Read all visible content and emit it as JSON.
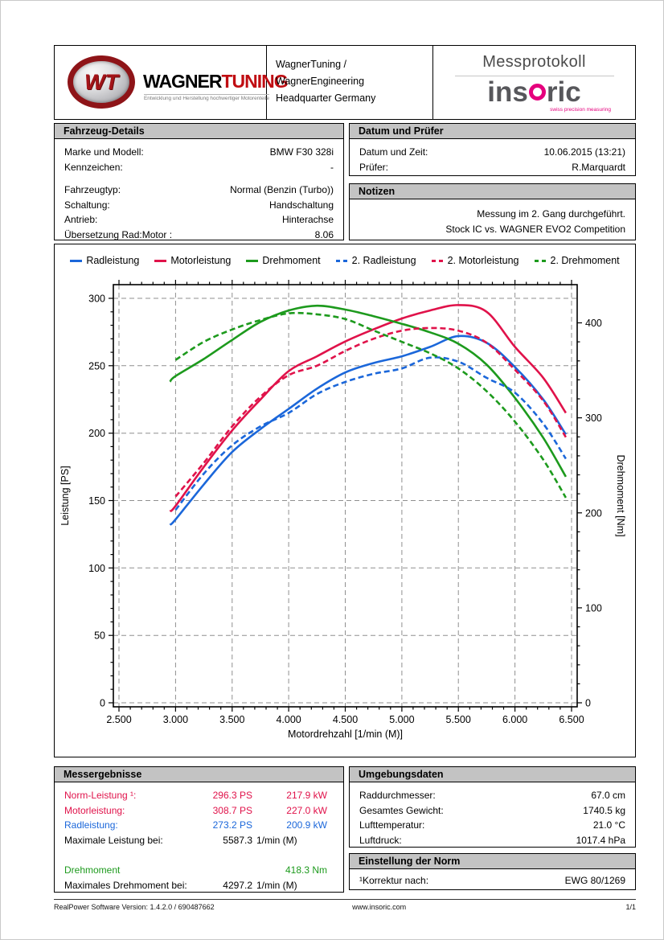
{
  "header": {
    "logo": {
      "monogram": "WT",
      "brand_black": "WAGNER",
      "brand_red": "TUNING",
      "tagline": "Entwicklung und Herstellung hochwertiger Motorenteile"
    },
    "center_line1": "WagnerTuning / WagnerEngineering",
    "center_line2": "Headquarter Germany",
    "protocol_title": "Messprotokoll",
    "insoric": {
      "name_pre": "ins",
      "name_post": "ric",
      "tagline": "swiss precision measuring"
    }
  },
  "vehicle_details": {
    "title": "Fahrzeug-Details",
    "rows": [
      {
        "label": "Marke und Modell:",
        "value": "BMW F30 328i"
      },
      {
        "label": "Kennzeichen:",
        "value": "-"
      },
      {
        "spacer": true
      },
      {
        "label": "Fahrzeugtyp:",
        "value": "Normal (Benzin (Turbo))"
      },
      {
        "label": "Schaltung:",
        "value": "Handschaltung"
      },
      {
        "label": "Antrieb:",
        "value": "Hinterachse"
      },
      {
        "label": "Übersetzung Rad:Motor :",
        "value": "8.06"
      }
    ]
  },
  "datum_pruefer": {
    "title": "Datum und Prüfer",
    "rows": [
      {
        "label": "Datum und Zeit:",
        "value": "10.06.2015 (13:21)"
      },
      {
        "label": "Prüfer:",
        "value": "R.Marquardt"
      }
    ]
  },
  "notizen": {
    "title": "Notizen",
    "lines": [
      "Messung im 2. Gang durchgeführt.",
      "Stock IC vs. WAGNER EVO2 Competition"
    ]
  },
  "chart_data": {
    "type": "line",
    "x_label": "Motordrehzahl [1/min (M)]",
    "y_left_label": "Leistung [PS]",
    "y_right_label": "Drehmoment [Nm]",
    "x_range": [
      2450,
      6550
    ],
    "x_ticks": [
      2500,
      3000,
      3500,
      4000,
      4500,
      5000,
      5500,
      6000,
      6500
    ],
    "x_tick_labels": [
      "2.500",
      "3.000",
      "3.500",
      "4.000",
      "4.500",
      "5.000",
      "5.500",
      "6.000",
      "6.500"
    ],
    "y_left_range": [
      0,
      300
    ],
    "y_left_ticks": [
      0,
      50,
      100,
      150,
      200,
      250,
      300
    ],
    "y_right_range": [
      0,
      400
    ],
    "y_right_ticks": [
      0,
      100,
      200,
      300,
      400
    ],
    "grid": true,
    "legend_position": "top",
    "rpm": [
      2950,
      3000,
      3250,
      3500,
      3750,
      4000,
      4250,
      4500,
      4750,
      5000,
      5250,
      5500,
      5750,
      6000,
      6250,
      6450
    ],
    "series": [
      {
        "name": "Radleistung",
        "axis": "left",
        "dash": false,
        "color": "#1b67da",
        "values": [
          132,
          136,
          162,
          186,
          203,
          218,
          233,
          245,
          252,
          257,
          264,
          272,
          267,
          249,
          225,
          199
        ]
      },
      {
        "name": "Motorleistung",
        "axis": "left",
        "dash": false,
        "color": "#e0124a",
        "values": [
          142,
          146,
          175,
          202,
          225,
          246,
          257,
          268,
          277,
          285,
          291,
          295,
          290,
          264,
          241,
          215
        ]
      },
      {
        "name": "Drehmoment",
        "axis": "right",
        "dash": false,
        "color": "#1d9a1d",
        "values": [
          338,
          344,
          362,
          382,
          401,
          413,
          418,
          414,
          407,
          399,
          390,
          378,
          356,
          321,
          279,
          238
        ]
      },
      {
        "name": "2. Radleistung",
        "axis": "left",
        "dash": true,
        "color": "#1b67da",
        "values": [
          null,
          143,
          170,
          191,
          205,
          215,
          229,
          238,
          244,
          248,
          256,
          253,
          241,
          230,
          207,
          181
        ]
      },
      {
        "name": "2. Motorleistung",
        "axis": "left",
        "dash": true,
        "color": "#e0124a",
        "values": [
          null,
          153,
          178,
          205,
          227,
          243,
          250,
          261,
          270,
          276,
          278,
          276,
          267,
          247,
          224,
          197
        ]
      },
      {
        "name": "2. Drehmoment",
        "axis": "right",
        "dash": true,
        "color": "#1d9a1d",
        "values": [
          null,
          361,
          380,
          393,
          403,
          410,
          409,
          404,
          392,
          380,
          368,
          352,
          328,
          296,
          256,
          216
        ]
      }
    ]
  },
  "messergebnisse": {
    "title": "Messergebnisse",
    "rows": [
      {
        "label": "Norm-Leistung ¹:",
        "ps": "296.3 PS",
        "kw": "217.9 kW",
        "color": "red"
      },
      {
        "label": "Motorleistung:",
        "ps": "308.7 PS",
        "kw": "227.0 kW",
        "color": "red"
      },
      {
        "label": "Radleistung:",
        "ps": "273.2 PS",
        "kw": "200.9 kW",
        "color": "blue"
      },
      {
        "label": "Maximale Leistung bei:",
        "num": "5587.3",
        "unit": "1/min (M)",
        "color": "black"
      },
      {
        "blank": true
      },
      {
        "label": "Drehmoment",
        "ps": "",
        "kw": "418.3 Nm",
        "color": "green"
      },
      {
        "label": "Maximales Drehmoment bei:",
        "num": "4297.2",
        "unit": "1/min (M)",
        "color": "black"
      }
    ]
  },
  "umgebungsdaten": {
    "title": "Umgebungsdaten",
    "rows": [
      {
        "label": "Raddurchmesser:",
        "value": "67.0 cm"
      },
      {
        "label": "Gesamtes Gewicht:",
        "value": "1740.5 kg"
      },
      {
        "label": "Lufttemperatur:",
        "value": "21.0 °C"
      },
      {
        "label": "Luftdruck:",
        "value": "1017.4 hPa"
      }
    ]
  },
  "einstellung_norm": {
    "title": "Einstellung der Norm",
    "rows": [
      {
        "label": "¹Korrektur nach:",
        "value": "EWG 80/1269"
      }
    ]
  },
  "footer": {
    "left": "RealPower Software Version:  1.4.2.0 / 690487662",
    "center": "www.insoric.com",
    "right": "1/1"
  }
}
